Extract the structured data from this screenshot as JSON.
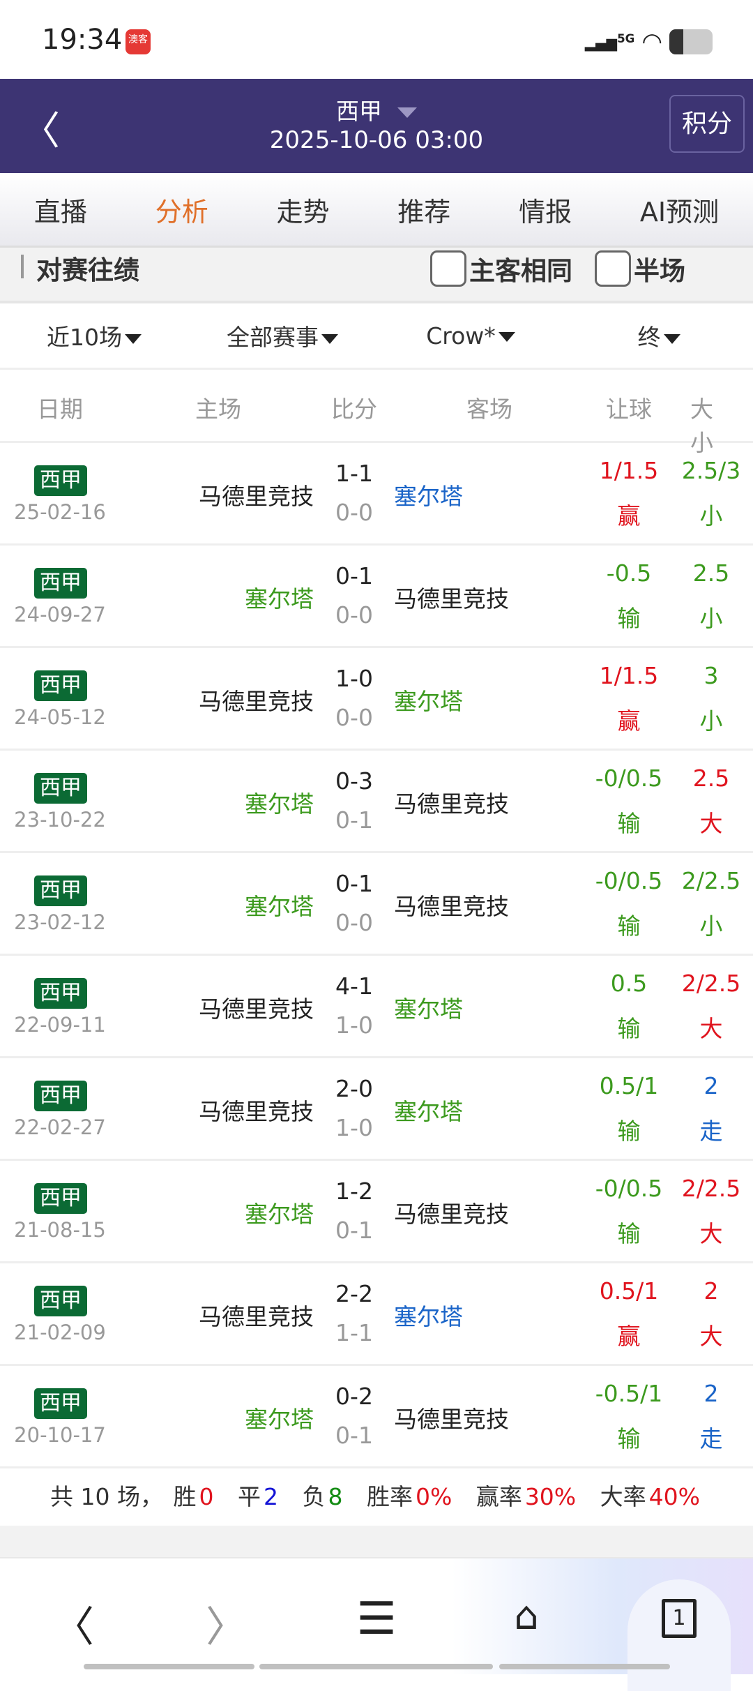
{
  "status": {
    "time": "19:34",
    "app_badge": "澳客",
    "network": "5G",
    "battery_level": 0.3
  },
  "header": {
    "title": "西甲",
    "datetime": "2025-10-06 03:00",
    "points_button": "积分"
  },
  "tabs": [
    {
      "label": "直播",
      "active": false
    },
    {
      "label": "分析",
      "active": true
    },
    {
      "label": "走势",
      "active": false
    },
    {
      "label": "推荐",
      "active": false
    },
    {
      "label": "情报",
      "active": false
    },
    {
      "label": "AI预测",
      "active": false
    }
  ],
  "section": {
    "title": "对赛往绩",
    "checkbox_same": "主客相同",
    "checkbox_half": "半场"
  },
  "filters": [
    "近10场",
    "全部赛事",
    "Crow*",
    "终"
  ],
  "columns": [
    "日期",
    "主场",
    "比分",
    "客场",
    "让球",
    "大小"
  ],
  "colors": {
    "win": "#e0141e",
    "lose": "#3c9a1e",
    "push": "#1a64c8",
    "league": "#0b6a34",
    "accent": "#e0702a",
    "nav": "#3d3473"
  },
  "rows": [
    {
      "league": "西甲",
      "date": "25-02-16",
      "home": "马德里竞技",
      "home_color": "#222222",
      "score": "1-1",
      "half": "0-0",
      "away": "塞尔塔",
      "away_color": "#1a64c8",
      "handicap": "1/1.5",
      "hc_result": "赢",
      "hc_color": "#e0141e",
      "ou": "2.5/3",
      "ou_result": "小",
      "ou_color": "#3c9a1e"
    },
    {
      "league": "西甲",
      "date": "24-09-27",
      "home": "塞尔塔",
      "home_color": "#3c9a1e",
      "score": "0-1",
      "half": "0-0",
      "away": "马德里竞技",
      "away_color": "#222222",
      "handicap": "-0.5",
      "hc_result": "输",
      "hc_color": "#3c9a1e",
      "ou": "2.5",
      "ou_result": "小",
      "ou_color": "#3c9a1e"
    },
    {
      "league": "西甲",
      "date": "24-05-12",
      "home": "马德里竞技",
      "home_color": "#222222",
      "score": "1-0",
      "half": "0-0",
      "away": "塞尔塔",
      "away_color": "#3c9a1e",
      "handicap": "1/1.5",
      "hc_result": "赢",
      "hc_color": "#e0141e",
      "ou": "3",
      "ou_result": "小",
      "ou_color": "#3c9a1e"
    },
    {
      "league": "西甲",
      "date": "23-10-22",
      "home": "塞尔塔",
      "home_color": "#3c9a1e",
      "score": "0-3",
      "half": "0-1",
      "away": "马德里竞技",
      "away_color": "#222222",
      "handicap": "-0/0.5",
      "hc_result": "输",
      "hc_color": "#3c9a1e",
      "ou": "2.5",
      "ou_result": "大",
      "ou_color": "#e0141e"
    },
    {
      "league": "西甲",
      "date": "23-02-12",
      "home": "塞尔塔",
      "home_color": "#3c9a1e",
      "score": "0-1",
      "half": "0-0",
      "away": "马德里竞技",
      "away_color": "#222222",
      "handicap": "-0/0.5",
      "hc_result": "输",
      "hc_color": "#3c9a1e",
      "ou": "2/2.5",
      "ou_result": "小",
      "ou_color": "#3c9a1e"
    },
    {
      "league": "西甲",
      "date": "22-09-11",
      "home": "马德里竞技",
      "home_color": "#222222",
      "score": "4-1",
      "half": "1-0",
      "away": "塞尔塔",
      "away_color": "#3c9a1e",
      "handicap": "0.5",
      "hc_result": "输",
      "hc_color": "#3c9a1e",
      "ou": "2/2.5",
      "ou_result": "大",
      "ou_color": "#e0141e"
    },
    {
      "league": "西甲",
      "date": "22-02-27",
      "home": "马德里竞技",
      "home_color": "#222222",
      "score": "2-0",
      "half": "1-0",
      "away": "塞尔塔",
      "away_color": "#3c9a1e",
      "handicap": "0.5/1",
      "hc_result": "输",
      "hc_color": "#3c9a1e",
      "ou": "2",
      "ou_result": "走",
      "ou_color": "#1a64c8"
    },
    {
      "league": "西甲",
      "date": "21-08-15",
      "home": "塞尔塔",
      "home_color": "#3c9a1e",
      "score": "1-2",
      "half": "0-1",
      "away": "马德里竞技",
      "away_color": "#222222",
      "handicap": "-0/0.5",
      "hc_result": "输",
      "hc_color": "#3c9a1e",
      "ou": "2/2.5",
      "ou_result": "大",
      "ou_color": "#e0141e"
    },
    {
      "league": "西甲",
      "date": "21-02-09",
      "home": "马德里竞技",
      "home_color": "#222222",
      "score": "2-2",
      "half": "1-1",
      "away": "塞尔塔",
      "away_color": "#1a64c8",
      "handicap": "0.5/1",
      "hc_result": "赢",
      "hc_color": "#e0141e",
      "ou": "2",
      "ou_result": "大",
      "ou_color": "#e0141e"
    },
    {
      "league": "西甲",
      "date": "20-10-17",
      "home": "塞尔塔",
      "home_color": "#3c9a1e",
      "score": "0-2",
      "half": "0-1",
      "away": "马德里竞技",
      "away_color": "#222222",
      "handicap": "-0.5/1",
      "hc_result": "输",
      "hc_color": "#3c9a1e",
      "ou": "2",
      "ou_result": "走",
      "ou_color": "#1a64c8"
    }
  ],
  "summary": {
    "total": "共 10 场，",
    "win_label": "胜",
    "win": "0",
    "draw_label": "平",
    "draw": "2",
    "lose_label": "负",
    "lose": "8",
    "win_rate_label": "胜率",
    "win_rate": "0%",
    "hc_rate_label": "赢率",
    "hc_rate": "30%",
    "big_rate_label": "大率",
    "big_rate": "40%"
  },
  "bottom_nav": {
    "tab_count": "1"
  }
}
